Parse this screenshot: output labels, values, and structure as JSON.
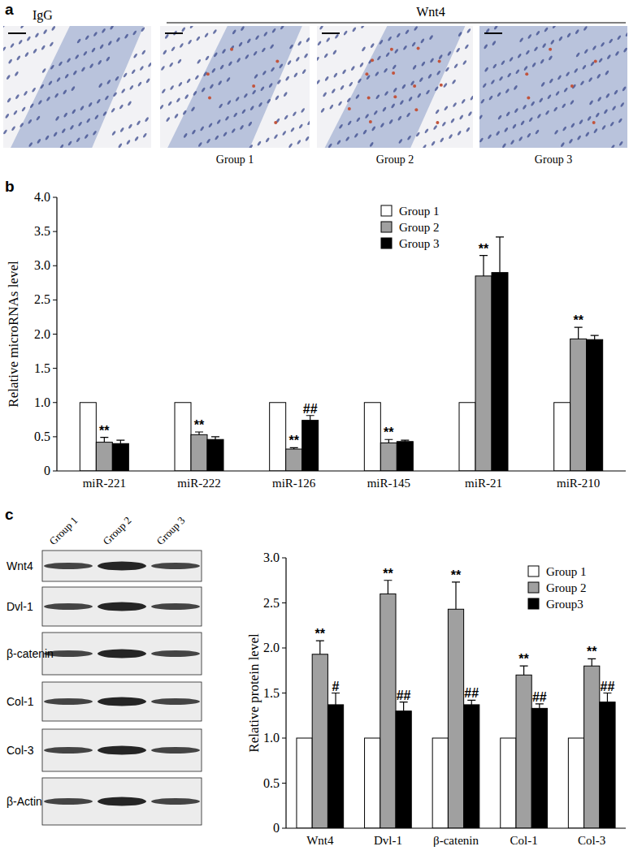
{
  "panel_labels": [
    "a",
    "b",
    "c"
  ],
  "panel_a": {
    "control": "IgG",
    "treatment": "Wnt4",
    "groups": [
      "Group 1",
      "Group 2",
      "Group 3"
    ]
  },
  "blot": {
    "lanes": [
      "Group 1",
      "Group 2",
      "Group 3"
    ],
    "proteins": [
      "Wnt4",
      "Dvl-1",
      "β-catenin",
      "Col-1",
      "Col-3",
      "β-Actin"
    ]
  },
  "chart_data": [
    {
      "type": "bar",
      "ylabel": "Relative microRNAs level",
      "categories": [
        "miR-221",
        "miR-222",
        "miR-126",
        "miR-145",
        "miR-21",
        "miR-210"
      ],
      "series": [
        {
          "name": "Group 1",
          "color": "#ffffff",
          "values": [
            1,
            1,
            1,
            1,
            1,
            1
          ]
        },
        {
          "name": "Group 2",
          "color": "#a0a0a0",
          "values": [
            0.42,
            0.53,
            0.32,
            0.41,
            2.85,
            1.93
          ],
          "errors": [
            0.07,
            0.04,
            0.02,
            0.05,
            0.3,
            0.17
          ],
          "annotations": [
            "**",
            "**",
            "**",
            "**",
            "**",
            "**"
          ]
        },
        {
          "name": "Group 3",
          "color": "#000000",
          "values": [
            0.4,
            0.46,
            0.74,
            0.43,
            2.9,
            1.92
          ],
          "errors": [
            0.05,
            0.04,
            0.07,
            0.02,
            0.52,
            0.06
          ],
          "annotations": [
            null,
            null,
            "##",
            null,
            null,
            null
          ]
        }
      ],
      "ylim": [
        0,
        4
      ],
      "yticks": [
        0,
        0.5,
        {
          "value": 1,
          "label": "1.0"
        },
        1.5,
        {
          "value": 2,
          "label": "2.0"
        },
        2.5,
        {
          "value": 3,
          "label": "3.0"
        },
        3.5,
        {
          "value": 4,
          "label": "4.0"
        }
      ],
      "grid": false,
      "legend": "top"
    },
    {
      "type": "bar",
      "ylabel": "Relative protein level",
      "categories": [
        "Wnt4",
        "Dvl-1",
        "β-catenin",
        "Col-1",
        "Col-3"
      ],
      "series": [
        {
          "name": "Group 1",
          "color": "#ffffff",
          "values": [
            1,
            1,
            1,
            1,
            1
          ]
        },
        {
          "name": "Group 2",
          "color": "#a0a0a0",
          "values": [
            1.93,
            2.6,
            2.43,
            1.7,
            1.8
          ],
          "errors": [
            0.15,
            0.15,
            0.3,
            0.1,
            0.08
          ],
          "annotations": [
            "**",
            "**",
            "**",
            "**",
            "**"
          ]
        },
        {
          "name": "Group3",
          "color": "#000000",
          "values": [
            1.37,
            1.3,
            1.37,
            1.33,
            1.4
          ],
          "errors": [
            0.13,
            0.1,
            0.05,
            0.05,
            0.1
          ],
          "annotations": [
            "#",
            "##",
            "##",
            "##",
            "##"
          ]
        }
      ],
      "ylim": [
        0,
        3
      ],
      "yticks": [
        0,
        0.5,
        {
          "value": 1,
          "label": "1.0"
        },
        1.5,
        {
          "value": 2,
          "label": "2.0"
        },
        2.5,
        {
          "value": 3,
          "label": "3.0"
        }
      ],
      "grid": false,
      "legend": "top-right"
    }
  ]
}
